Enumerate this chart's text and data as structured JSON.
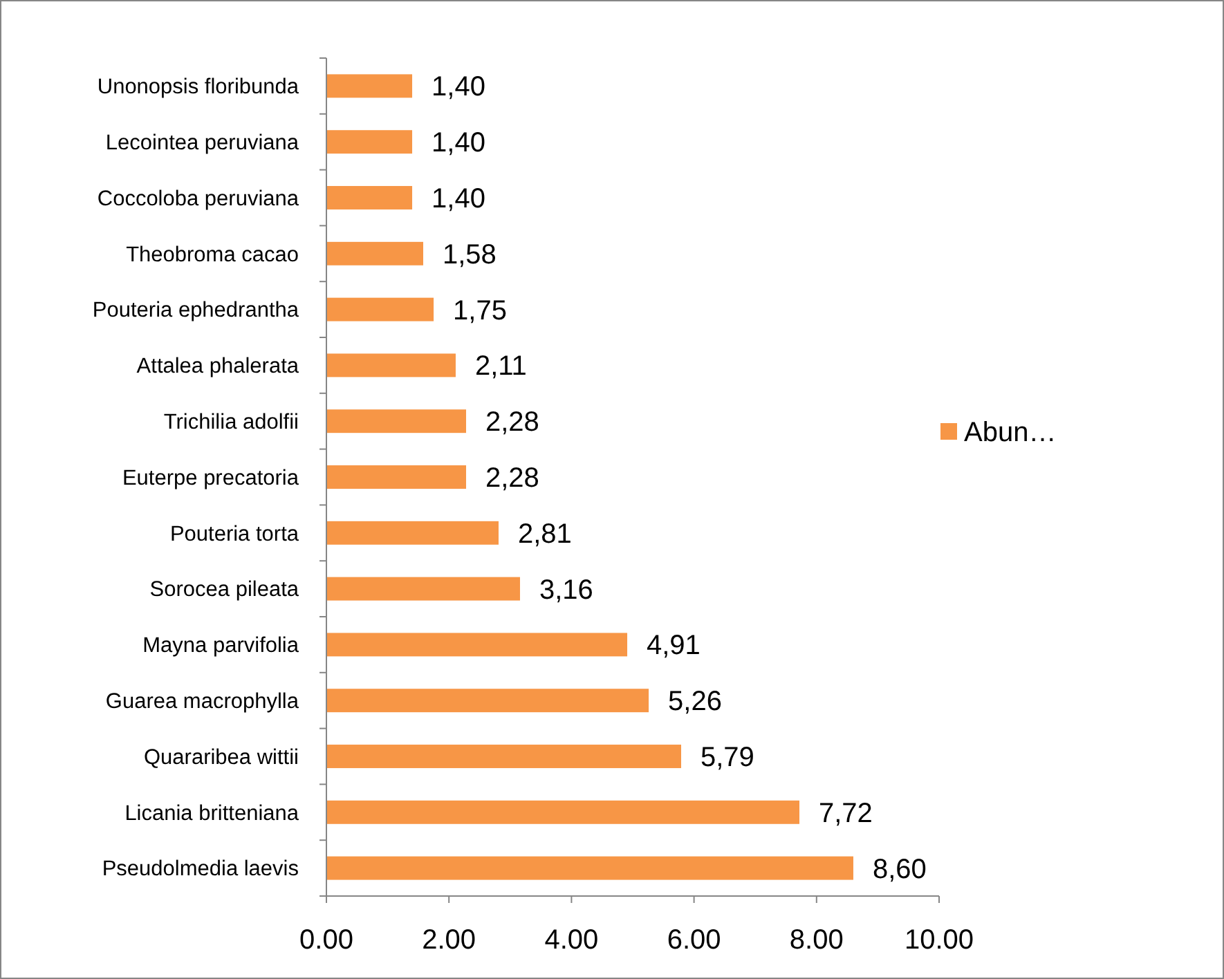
{
  "chart_data": {
    "type": "bar",
    "orientation": "horizontal",
    "categories": [
      "Unonopsis floribunda",
      "Lecointea peruviana",
      "Coccoloba peruviana",
      "Theobroma cacao",
      "Pouteria ephedrantha",
      "Attalea phalerata",
      "Trichilia adolfii",
      "Euterpe precatoria",
      "Pouteria torta",
      "Sorocea pileata",
      "Mayna parvifolia",
      "Guarea macrophylla",
      "Quararibea wittii",
      "Licania britteniana",
      "Pseudolmedia laevis"
    ],
    "series": [
      {
        "name": "Abun…",
        "color": "#f79646",
        "values": [
          1.4,
          1.4,
          1.4,
          1.58,
          1.75,
          2.11,
          2.28,
          2.28,
          2.81,
          3.16,
          4.91,
          5.26,
          5.79,
          7.72,
          8.6
        ],
        "value_labels": [
          "1,40",
          "1,40",
          "1,40",
          "1,58",
          "1,75",
          "2,11",
          "2,28",
          "2,28",
          "2,81",
          "3,16",
          "4,91",
          "5,26",
          "5,79",
          "7,72",
          "8,60"
        ]
      }
    ],
    "xlim": [
      0,
      10
    ],
    "xticks": [
      {
        "value": 0,
        "label": "0.00"
      },
      {
        "value": 2,
        "label": "2.00"
      },
      {
        "value": 4,
        "label": "4.00"
      },
      {
        "value": 6,
        "label": "6.00"
      },
      {
        "value": 8,
        "label": "8.00"
      },
      {
        "value": 10,
        "label": "10.00"
      }
    ],
    "grid": false,
    "legend": "right"
  }
}
